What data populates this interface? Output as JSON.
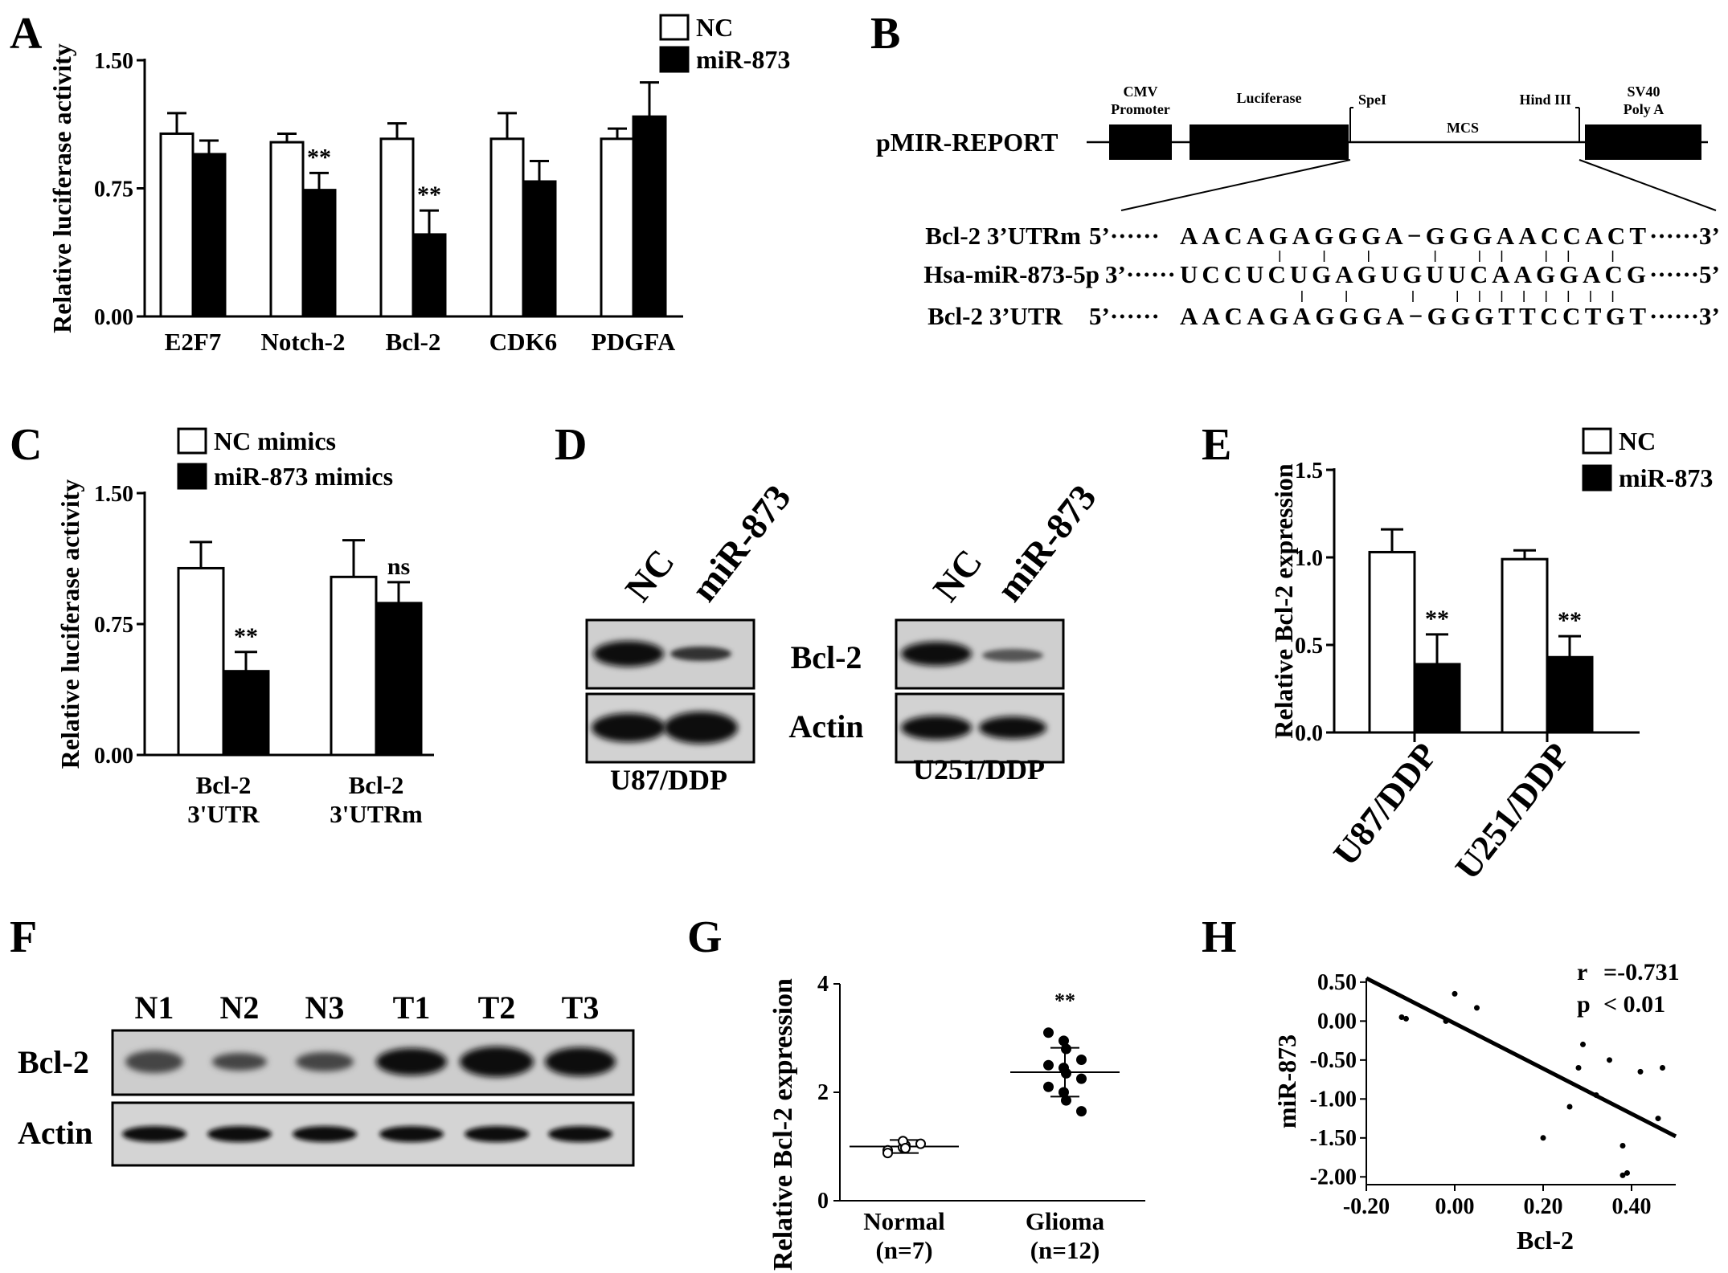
{
  "panels": {
    "A": {
      "label": "A"
    },
    "B": {
      "label": "B",
      "vector": "pMIR-REPORT",
      "elements": [
        "CMV",
        "Promoter",
        "Luciferase",
        "SpeI",
        "MCS",
        "Hind III",
        "SV40",
        "Poly A"
      ],
      "rows": [
        {
          "name": "Bcl-2 3’UTRm",
          "left": "5’······",
          "seq": "AACAGAGGGA−GGGAACCACT",
          "right": "······3’"
        },
        {
          "name": "Hsa-miR-873-5p",
          "left": "3’······",
          "seq": "UCCUCUGAGUGUUCAAGGACG",
          "right": "······5’"
        },
        {
          "name": "Bcl-2 3’UTR",
          "left": "5’······",
          "seq": "AACAGAGGGA−GGGTTCCTGT",
          "right": "······3’"
        }
      ]
    },
    "C": {
      "label": "C"
    },
    "D": {
      "label": "D",
      "lanes": [
        "NC",
        "miR-873"
      ],
      "bands": [
        "Bcl-2",
        "Actin"
      ],
      "cells": [
        "U87/DDP",
        "U251/DDP"
      ]
    },
    "E": {
      "label": "E"
    },
    "F": {
      "label": "F",
      "lanes": [
        "N1",
        "N2",
        "N3",
        "T1",
        "T2",
        "T3"
      ],
      "bands": [
        "Bcl-2",
        "Actin"
      ]
    },
    "G": {
      "label": "G"
    },
    "H": {
      "label": "H"
    }
  },
  "chart_data": [
    {
      "panel": "A",
      "type": "bar",
      "ylabel": "Relative luciferase activity",
      "ylim": [
        0,
        1.5
      ],
      "yticks": [
        "0.00",
        "0.75",
        "1.50"
      ],
      "categories": [
        "E2F7",
        "Notch-2",
        "Bcl-2",
        "CDK6",
        "PDGFA"
      ],
      "series": [
        {
          "name": "NC",
          "fill": "#ffffff",
          "values": [
            1.07,
            1.02,
            1.04,
            1.04,
            1.04
          ],
          "errors": [
            0.12,
            0.05,
            0.09,
            0.15,
            0.06
          ]
        },
        {
          "name": "miR-873",
          "fill": "#000000",
          "values": [
            0.95,
            0.74,
            0.48,
            0.79,
            1.17
          ],
          "errors": [
            0.08,
            0.1,
            0.14,
            0.12,
            0.2
          ]
        }
      ],
      "annotations": [
        {
          "category": "Notch-2",
          "text": "**"
        },
        {
          "category": "Bcl-2",
          "text": "**"
        }
      ],
      "legend": "top-right"
    },
    {
      "panel": "C",
      "type": "bar",
      "ylabel": "Relative luciferase activity",
      "ylim": [
        0,
        1.5
      ],
      "yticks": [
        "0.00",
        "0.75",
        "1.50"
      ],
      "categories": [
        "Bcl-2\n3'UTR",
        "Bcl-2\n3'UTRm"
      ],
      "series": [
        {
          "name": "NC mimics",
          "fill": "#ffffff",
          "values": [
            1.07,
            1.02
          ],
          "errors": [
            0.15,
            0.21
          ]
        },
        {
          "name": "miR-873 mimics",
          "fill": "#000000",
          "values": [
            0.48,
            0.87
          ],
          "errors": [
            0.11,
            0.12
          ]
        }
      ],
      "annotations": [
        {
          "category": 0,
          "text": "**"
        },
        {
          "category": 1,
          "text": "ns"
        }
      ],
      "legend": "top"
    },
    {
      "panel": "E",
      "type": "bar",
      "ylabel": "Relative Bcl-2 expression",
      "ylim": [
        0,
        1.5
      ],
      "yticks": [
        "0.0",
        "0.5",
        "1.0",
        "1.5"
      ],
      "categories": [
        "U87/DDP",
        "U251/DDP"
      ],
      "series": [
        {
          "name": "NC",
          "fill": "#ffffff",
          "values": [
            1.03,
            0.99
          ],
          "errors": [
            0.13,
            0.05
          ]
        },
        {
          "name": "miR-873",
          "fill": "#000000",
          "values": [
            0.39,
            0.43
          ],
          "errors": [
            0.17,
            0.12
          ]
        }
      ],
      "annotations": [
        {
          "category": 0,
          "text": "**"
        },
        {
          "category": 1,
          "text": "**"
        }
      ],
      "legend": "top-right"
    },
    {
      "panel": "G",
      "type": "scatter",
      "ylabel": "Relative Bcl-2 expression",
      "ylim": [
        0,
        4
      ],
      "yticks": [
        "0",
        "2",
        "4"
      ],
      "categories": [
        "Normal\n(n=7)",
        "Glioma\n(n=12)"
      ],
      "groups": [
        {
          "name": "Normal",
          "mean": 1.0,
          "sd": 0.12,
          "marker": "open",
          "points": [
            0.93,
            0.98,
            1.02,
            1.05,
            0.88,
            1.1,
            0.97
          ]
        },
        {
          "name": "Glioma",
          "mean": 2.37,
          "sd": 0.45,
          "marker": "filled",
          "points": [
            3.1,
            2.95,
            2.8,
            2.6,
            2.5,
            2.45,
            2.35,
            2.25,
            2.1,
            2.0,
            1.85,
            1.65
          ]
        }
      ],
      "annotations": [
        {
          "category": 1,
          "text": "**"
        }
      ]
    },
    {
      "panel": "H",
      "type": "scatter",
      "xlabel": "Bcl-2",
      "ylabel": "miR-873",
      "xlim": [
        -0.2,
        0.5
      ],
      "ylim": [
        -2.1,
        0.55
      ],
      "xticks": [
        "-0.20",
        "0.00",
        "0.20",
        "0.40"
      ],
      "yticks": [
        "0.50",
        "0.00",
        "-0.50",
        "-1.00",
        "-1.50",
        "-2.00"
      ],
      "points": [
        [
          -0.12,
          0.05
        ],
        [
          -0.11,
          0.03
        ],
        [
          -0.02,
          0.0
        ],
        [
          0.0,
          0.35
        ],
        [
          0.05,
          0.17
        ],
        [
          0.2,
          -1.5
        ],
        [
          0.26,
          -1.1
        ],
        [
          0.28,
          -0.6
        ],
        [
          0.29,
          -0.3
        ],
        [
          0.32,
          -0.95
        ],
        [
          0.35,
          -0.5
        ],
        [
          0.38,
          -1.6
        ],
        [
          0.38,
          -1.98
        ],
        [
          0.39,
          -1.95
        ],
        [
          0.42,
          -0.65
        ],
        [
          0.47,
          -0.6
        ],
        [
          0.46,
          -1.25
        ]
      ],
      "fit_line": {
        "x": [
          -0.2,
          0.5
        ],
        "y": [
          0.55,
          -1.48
        ]
      },
      "stats": [
        {
          "k": "r",
          "v": "=-0.731"
        },
        {
          "k": "p",
          "v": "< 0.01"
        }
      ]
    }
  ]
}
